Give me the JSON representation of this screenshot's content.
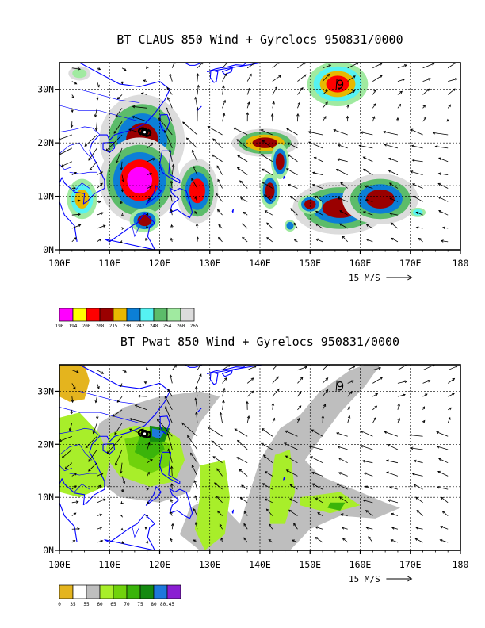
{
  "chart_data": [
    {
      "type": "heatmap",
      "title": "BT CLAUS 850 Wind + Gyrelocs 950831/0000",
      "xlim": [
        100,
        180
      ],
      "ylim": [
        0,
        35
      ],
      "x_ticks": [
        100,
        110,
        120,
        130,
        140,
        150,
        160,
        170,
        180
      ],
      "x_tick_labels": [
        "100E",
        "110E",
        "120E",
        "130E",
        "140E",
        "150E",
        "160E",
        "170E",
        "180"
      ],
      "y_ticks": [
        0,
        10,
        20,
        30
      ],
      "y_tick_labels": [
        "0N",
        "10N",
        "20N",
        "30N"
      ],
      "grid": true,
      "reference_vector": "15 M/S",
      "colorbar": {
        "labels": [
          "190",
          "194",
          "200",
          "208",
          "215",
          "230",
          "242",
          "248",
          "254",
          "260",
          "265"
        ],
        "colors": [
          "#ff00ff",
          "#ffff00",
          "#ff0000",
          "#9a0000",
          "#e8b800",
          "#0c7fd6",
          "#55f2f2",
          "#5cbc6a",
          "#a0eaa0",
          "#dcdcdc"
        ]
      },
      "cloud_features": [
        {
          "lon": 116.5,
          "lat": 20.5,
          "rx": 4.5,
          "ry": 4.5,
          "levels": [
            9,
            7,
            5,
            3
          ]
        },
        {
          "lon": 116.0,
          "lat": 13.0,
          "rx": 3.5,
          "ry": 3.5,
          "levels": [
            9,
            7,
            5,
            2,
            0
          ]
        },
        {
          "lon": 117.0,
          "lat": 5.5,
          "rx": 2.0,
          "ry": 1.5,
          "levels": [
            8,
            5,
            3
          ]
        },
        {
          "lon": 127.5,
          "lat": 11.0,
          "rx": 2.2,
          "ry": 3.2,
          "levels": [
            9,
            7,
            5,
            2
          ]
        },
        {
          "lon": 141.0,
          "lat": 20.0,
          "rx": 3.5,
          "ry": 1.4,
          "levels": [
            9,
            7,
            4,
            3
          ]
        },
        {
          "lon": 144.0,
          "lat": 16.5,
          "rx": 1.2,
          "ry": 2.2,
          "levels": [
            8,
            5,
            3
          ]
        },
        {
          "lon": 142.0,
          "lat": 11.0,
          "rx": 1.3,
          "ry": 2.2,
          "levels": [
            8,
            5,
            3
          ]
        },
        {
          "lon": 156.0,
          "lat": 7.8,
          "rx": 5.0,
          "ry": 2.6,
          "levels": [
            9,
            7,
            5,
            3
          ]
        },
        {
          "lon": 164.0,
          "lat": 9.5,
          "rx": 4.0,
          "ry": 2.5,
          "levels": [
            9,
            7,
            5,
            3
          ]
        },
        {
          "lon": 150.0,
          "lat": 8.5,
          "rx": 1.6,
          "ry": 1.2,
          "levels": [
            8,
            5,
            3
          ]
        },
        {
          "lon": 155.5,
          "lat": 31.0,
          "rx": 3.2,
          "ry": 2.2,
          "levels": [
            8,
            6,
            4,
            2
          ]
        },
        {
          "lon": 104.5,
          "lat": 9.5,
          "rx": 2.0,
          "ry": 2.5,
          "levels": [
            8,
            6,
            4
          ]
        },
        {
          "lon": 104.0,
          "lat": 33.0,
          "rx": 2.0,
          "ry": 1.2,
          "levels": [
            9,
            8
          ]
        },
        {
          "lon": 146.0,
          "lat": 4.5,
          "rx": 1.0,
          "ry": 1.0,
          "levels": [
            8,
            5
          ]
        },
        {
          "lon": 171.5,
          "lat": 7.0,
          "rx": 1.4,
          "ry": 0.8,
          "levels": [
            8,
            6
          ]
        }
      ],
      "gyre_symbols": [
        {
          "lon": 117.0,
          "lat": 22.0,
          "marker": "typhoon"
        },
        {
          "lon": 156.0,
          "lat": 31.0,
          "marker": "gyre"
        }
      ]
    },
    {
      "type": "heatmap",
      "title": "BT Pwat 850 Wind + Gyrelocs 950831/0000",
      "xlim": [
        100,
        180
      ],
      "ylim": [
        0,
        35
      ],
      "x_ticks": [
        100,
        110,
        120,
        130,
        140,
        150,
        160,
        170,
        180
      ],
      "x_tick_labels": [
        "100E",
        "110E",
        "120E",
        "130E",
        "140E",
        "150E",
        "160E",
        "170E",
        "180"
      ],
      "y_ticks": [
        0,
        10,
        20,
        30
      ],
      "y_tick_labels": [
        "0N",
        "10N",
        "20N",
        "30N"
      ],
      "grid": true,
      "reference_vector": "15 M/S",
      "colorbar": {
        "labels": [
          "0",
          "35",
          "55",
          "60",
          "65",
          "70",
          "75",
          "80",
          "80.45"
        ],
        "colors": [
          "#e4b41e",
          "#ffffff",
          "#bebebe",
          "#a8ee2a",
          "#70d20c",
          "#3ab40a",
          "#148a10",
          "#1e78dc",
          "#8a1ed2"
        ]
      },
      "moisture_regions": [
        {
          "level": 2,
          "points": [
            [
              136,
              5
            ],
            [
              140,
              17
            ],
            [
              144,
              23
            ],
            [
              148,
              25.5
            ],
            [
              152,
              30
            ],
            [
              158,
              34
            ],
            [
              161,
              35
            ],
            [
              164,
              35
            ],
            [
              161,
              31
            ],
            [
              156,
              26
            ],
            [
              152,
              21
            ],
            [
              149,
              17
            ],
            [
              152,
              14
            ],
            [
              160,
              11
            ],
            [
              165,
              9
            ],
            [
              168,
              8
            ],
            [
              163,
              6
            ],
            [
              156,
              6.5
            ],
            [
              150,
              4
            ],
            [
              146,
              0
            ],
            [
              136,
              0
            ],
            [
              128,
              0
            ],
            [
              124,
              3
            ],
            [
              126,
              8
            ],
            [
              130,
              10
            ],
            [
              133,
              8
            ]
          ]
        },
        {
          "level": 2,
          "points": [
            [
              113,
              27
            ],
            [
              120,
              29
            ],
            [
              128,
              30
            ],
            [
              132,
              29
            ],
            [
              128,
              24
            ],
            [
              126,
              20
            ],
            [
              128,
              16
            ],
            [
              126,
              11
            ],
            [
              120,
              9
            ],
            [
              112,
              10
            ],
            [
              108,
              13
            ],
            [
              106,
              18
            ],
            [
              108,
              24
            ]
          ]
        },
        {
          "level": 0,
          "points": [
            [
              100,
              35
            ],
            [
              105,
              35
            ],
            [
              106,
              32
            ],
            [
              105,
              28.5
            ],
            [
              102,
              28
            ],
            [
              100,
              29
            ]
          ]
        },
        {
          "level": 3,
          "points": [
            [
              100,
              25
            ],
            [
              104,
              26
            ],
            [
              108,
              22
            ],
            [
              110,
              17
            ],
            [
              109,
              12
            ],
            [
              104,
              10
            ],
            [
              100,
              11
            ]
          ]
        },
        {
          "level": 3,
          "points": [
            [
              110,
              22
            ],
            [
              115,
              23.5
            ],
            [
              121,
              23
            ],
            [
              124,
              21
            ],
            [
              125,
              17
            ],
            [
              123,
              13
            ],
            [
              118,
              12
            ],
            [
              112,
              14
            ],
            [
              109,
              18
            ]
          ]
        },
        {
          "level": 3,
          "points": [
            [
              128,
              16
            ],
            [
              133,
              17
            ],
            [
              134,
              10
            ],
            [
              133,
              3
            ],
            [
              129,
              0
            ],
            [
              127,
              4
            ],
            [
              128,
              10
            ]
          ]
        },
        {
          "level": 3,
          "points": [
            [
              143,
              18
            ],
            [
              146,
              19
            ],
            [
              147,
              11
            ],
            [
              145,
              5
            ],
            [
              142,
              5
            ],
            [
              142,
              12
            ]
          ]
        },
        {
          "level": 3,
          "points": [
            [
              148,
              10
            ],
            [
              156,
              11
            ],
            [
              160,
              8.5
            ],
            [
              154,
              7
            ],
            [
              148,
              8.5
            ]
          ]
        },
        {
          "level": 4,
          "points": [
            [
              113,
              21
            ],
            [
              118,
              22
            ],
            [
              122,
              20
            ],
            [
              122,
              16
            ],
            [
              118,
              14.5
            ],
            [
              114,
              16
            ]
          ]
        },
        {
          "level": 5,
          "points": [
            [
              116,
              21.5
            ],
            [
              120,
              22
            ],
            [
              121,
              19
            ],
            [
              118,
              17
            ],
            [
              115,
              18.5
            ]
          ]
        },
        {
          "level": 5,
          "points": [
            [
              154,
              9
            ],
            [
              157,
              9
            ],
            [
              156,
              7.5
            ],
            [
              153.5,
              8
            ]
          ]
        },
        {
          "level": 6,
          "points": [
            [
              118,
              23.5
            ],
            [
              122,
              23
            ],
            [
              121,
              20.5
            ],
            [
              118,
              20.5
            ]
          ]
        },
        {
          "level": 7,
          "points": [
            [
              118.5,
              23
            ],
            [
              121,
              22.5
            ],
            [
              120,
              21
            ],
            [
              118.5,
              21.5
            ]
          ]
        }
      ],
      "gyre_symbols": [
        {
          "lon": 117.0,
          "lat": 22.0,
          "marker": "typhoon"
        },
        {
          "lon": 156.0,
          "lat": 31.0,
          "marker": "gyre"
        }
      ]
    }
  ]
}
